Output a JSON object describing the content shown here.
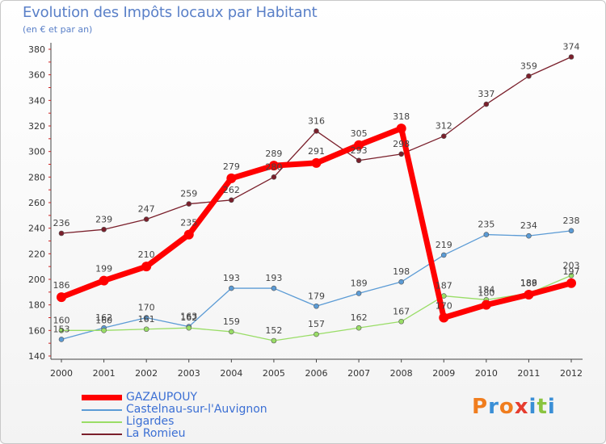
{
  "header": {
    "title": "Evolution des Impôts locaux par Habitant",
    "subtitle": "(en € et par an)"
  },
  "logo": {
    "text": "Proxiti",
    "colors": [
      "#f07d1e",
      "#3a8fd6",
      "#f07d1e",
      "#e63c2e",
      "#3a8fd6",
      "#8ac43f",
      "#3a8fd6"
    ]
  },
  "chart_data": {
    "type": "line",
    "title": "Evolution des Impôts locaux par Habitant",
    "subtitle": "(en € et par an)",
    "x": [
      "2000",
      "2001",
      "2002",
      "2003",
      "2004",
      "2005",
      "2006",
      "2007",
      "2008",
      "2009",
      "2010",
      "2011",
      "2012"
    ],
    "ylim": [
      140,
      380
    ],
    "yticks": [
      140,
      160,
      180,
      200,
      220,
      240,
      260,
      280,
      300,
      320,
      340,
      360,
      380
    ],
    "grid": false,
    "legend_position": "bottom-left",
    "series": [
      {
        "name": "GAZAUPOUY",
        "color": "#ff0000",
        "values": [
          186,
          199,
          210,
          235,
          279,
          289,
          291,
          305,
          318,
          170,
          180,
          188,
          197
        ],
        "labels": [
          "186",
          "199",
          "210",
          "235",
          "279",
          "289",
          "291",
          "305",
          "318",
          "170",
          "180",
          "188",
          "197"
        ]
      },
      {
        "name": "Castelnau-sur-l'Auvignon",
        "color": "#5b9bd5",
        "values": [
          153,
          162,
          170,
          163,
          193,
          193,
          179,
          189,
          198,
          219,
          235,
          234,
          238
        ],
        "labels": [
          "153",
          "162",
          "170",
          "163",
          "193",
          "193",
          "179",
          "189",
          "198",
          "219",
          "235",
          "234",
          "238"
        ]
      },
      {
        "name": "Ligardes",
        "color": "#99dd66",
        "values": [
          160,
          160,
          161,
          162,
          159,
          152,
          157,
          162,
          167,
          187,
          184,
          189,
          203
        ],
        "labels": [
          "160",
          "160",
          "161",
          "162",
          "159",
          "152",
          "157",
          "162",
          "167",
          "187",
          "184",
          "189",
          "203"
        ]
      },
      {
        "name": "La Romieu",
        "color": "#7a1f2b",
        "values": [
          236,
          239,
          247,
          259,
          262,
          280,
          316,
          293,
          298,
          312,
          337,
          359,
          374
        ],
        "labels": [
          "236",
          "239",
          "247",
          "259",
          "262",
          "280",
          "316",
          "293",
          "298",
          "312",
          "337",
          "359",
          "374"
        ]
      }
    ]
  }
}
